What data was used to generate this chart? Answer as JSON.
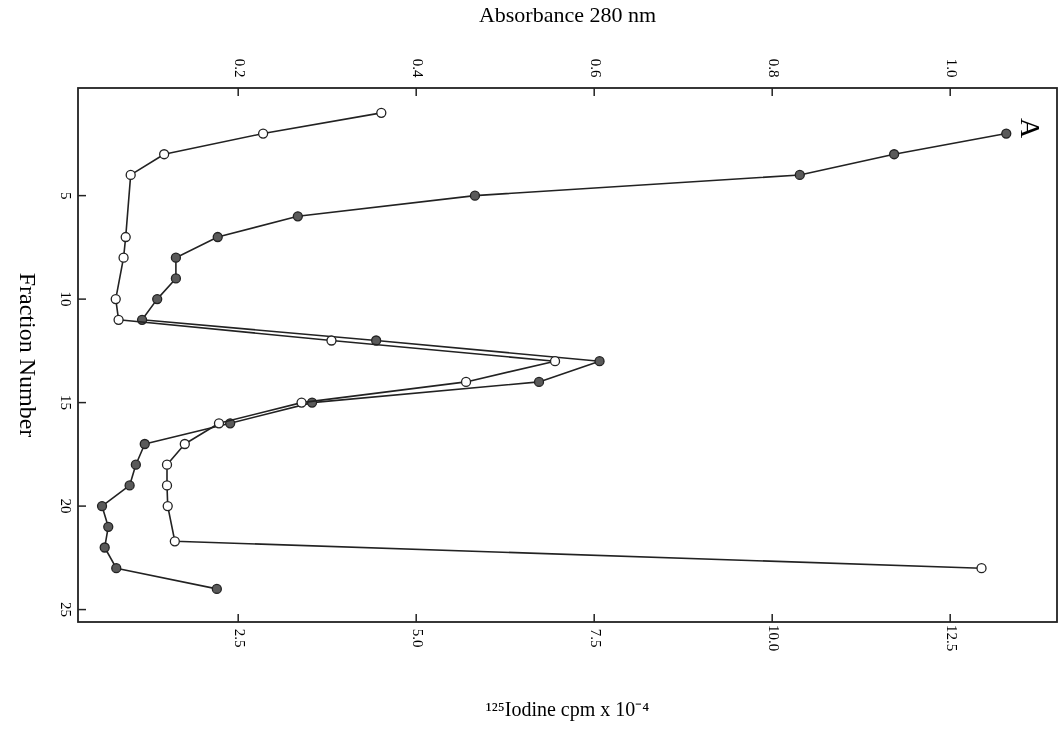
{
  "chart_data": {
    "type": "line",
    "orientation": "horizontal",
    "xlabel": "¹²⁵Iodine  cpm x 10⁻⁴",
    "x2label": "Absorbance   280 nm",
    "ylabel": "Fraction Number",
    "xlim": [
      0.25,
      14
    ],
    "xticks": [
      2.5,
      {
        "value": 5,
        "label": "5.0"
      },
      {
        "value": 7.5,
        "label": "7.5"
      },
      {
        "value": 10,
        "label": "10.0"
      },
      12.5
    ],
    "x2lim": [
      0.02,
      1.12
    ],
    "x2ticks": [
      0.2,
      0.4,
      0.6,
      0.8,
      {
        "value": 1,
        "label": "1.0"
      }
    ],
    "ylim": [
      25.6,
      -0.2
    ],
    "yticks": [
      5,
      10,
      15,
      20,
      25
    ],
    "marker": "circle",
    "grid": false,
    "annotations": [
      "A"
    ],
    "series": [
      {
        "axis": "x2",
        "color": "#5a5a5a",
        "x": [
          2,
          3,
          4,
          5,
          6,
          7,
          8,
          9,
          10,
          11,
          12,
          13,
          14,
          15,
          16,
          17,
          18,
          19,
          20,
          21,
          22,
          23,
          24
        ],
        "values": [
          1.063,
          0.937,
          0.831,
          0.466,
          0.267,
          0.177,
          0.13,
          0.13,
          0.109,
          0.092,
          0.355,
          0.606,
          0.538,
          0.283,
          0.191,
          0.095,
          0.085,
          0.078,
          0.047,
          0.054,
          0.05,
          0.063,
          0.176
        ]
      },
      {
        "color": "#ffffff",
        "x": [
          1,
          2,
          3,
          4,
          7,
          8,
          10,
          11,
          12,
          13,
          14,
          15,
          16,
          17,
          18,
          19,
          20,
          21.7,
          23
        ],
        "values": [
          4.51,
          2.85,
          1.46,
          0.99,
          0.92,
          0.89,
          0.78,
          0.82,
          3.81,
          6.95,
          5.7,
          3.39,
          2.23,
          1.75,
          1.5,
          1.5,
          1.51,
          1.61,
          12.94
        ]
      }
    ]
  }
}
